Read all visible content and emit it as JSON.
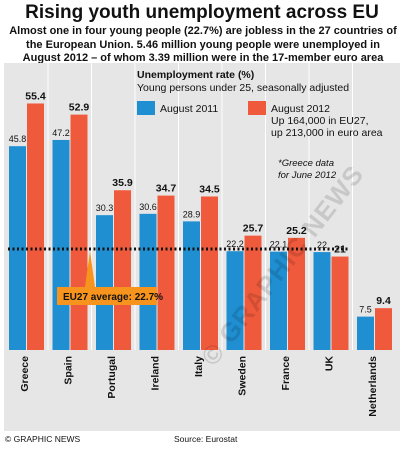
{
  "header": {
    "title": "Rising youth unemployment across EU",
    "subtitle": "Almost one in four young people (22.7%) are jobless in the 27 countries of the European Union. 5.46 million young people were unemployed in August 2012 – of whom 3.39 million were in the 17-member euro area"
  },
  "chart_data": {
    "type": "bar",
    "title": "Unemployment rate (%)",
    "subtitle": "Young persons under 25, seasonally adjusted",
    "categories": [
      "Greece",
      "Spain",
      "Portugal",
      "Ireland",
      "Italy",
      "Sweden",
      "France",
      "UK",
      "Netherlands"
    ],
    "series": [
      {
        "name": "August 2011",
        "color": "#1f8fd2",
        "values": [
          45.8,
          47.2,
          30.3,
          30.6,
          28.9,
          22.2,
          22.1,
          22.0,
          7.5
        ]
      },
      {
        "name": "August 2012",
        "color": "#f05a3c",
        "values": [
          55.4,
          52.9,
          35.9,
          34.7,
          34.5,
          25.7,
          25.2,
          21.0,
          9.4
        ]
      }
    ],
    "legend_notes": [
      "Up 164,000 in EU27,",
      "up 213,000 in euro area"
    ],
    "footnote": [
      "*Greece data",
      "for June 2012"
    ],
    "reference_line": {
      "label": "EU27 average: 22.7%",
      "value": 22.7
    },
    "ylim": [
      0,
      60
    ],
    "grid": false,
    "legend": "top-right"
  },
  "footer": {
    "credit": "© GRAPHIC NEWS",
    "source": "Source: Eurostat"
  },
  "watermark": "© GRAPHIC NEWS",
  "colors": {
    "panel": "#e6e6e6",
    "avg_box": "#f7941d"
  }
}
